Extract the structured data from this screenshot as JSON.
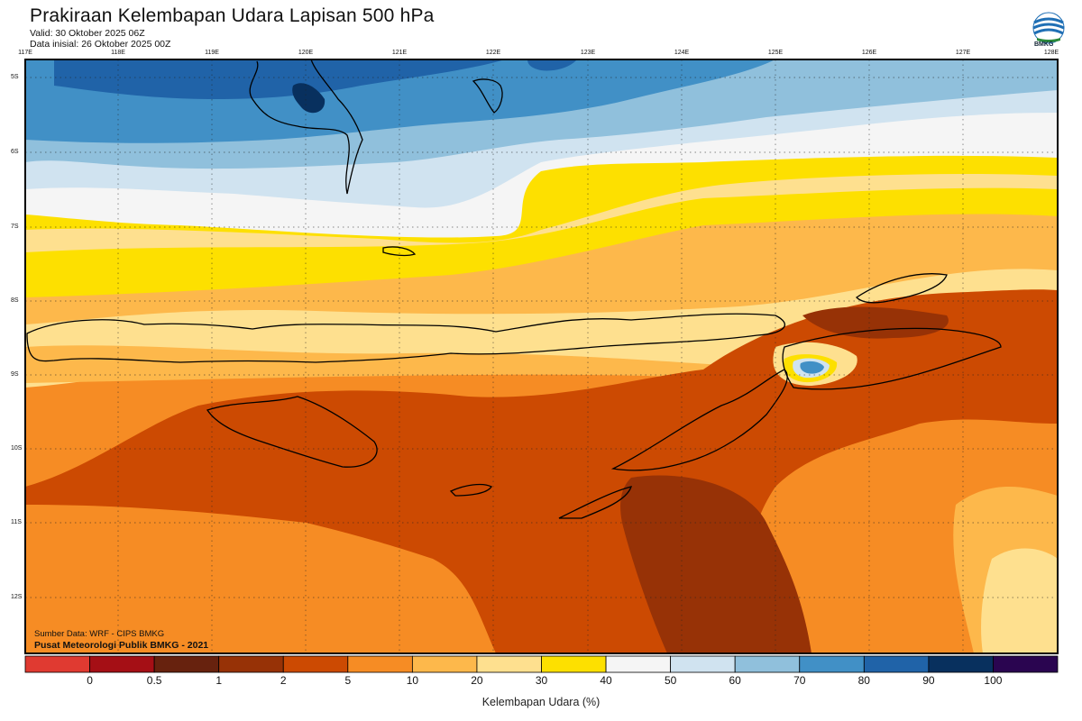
{
  "header": {
    "title": "Prakiraan Kelembapan Udara Lapisan 500 hPa",
    "valid": "Valid: 30 Oktober 2025 06Z",
    "initial": "Data inisial: 26 Oktober 2025 00Z",
    "logo_text": "BMKG"
  },
  "axes": {
    "longitudes": [
      "117E",
      "118E",
      "119E",
      "120E",
      "121E",
      "122E",
      "123E",
      "124E",
      "125E",
      "126E",
      "127E",
      "128E"
    ],
    "latitudes": [
      "5S",
      "6S",
      "7S",
      "8S",
      "9S",
      "10S",
      "11S",
      "12S"
    ]
  },
  "credits": {
    "source": "Sumber Data: WRF - CIPS BMKG",
    "org": "Pusat Meteorologi Publik BMKG - 2021"
  },
  "colorbar": {
    "title": "Kelembapan Udara (%)",
    "ticks": [
      "0",
      "0.5",
      "1",
      "2",
      "5",
      "10",
      "20",
      "30",
      "40",
      "50",
      "60",
      "70",
      "80",
      "90",
      "100"
    ],
    "colors": [
      "#e03a31",
      "#a50f15",
      "#67220e",
      "#973206",
      "#cc4a02",
      "#f68c24",
      "#fdb84b",
      "#fee08f",
      "#fde000",
      "#f5f5f5",
      "#d0e3f0",
      "#90c0dc",
      "#4190c6",
      "#2063a8",
      "#08305e",
      "#2a0550"
    ]
  },
  "legend_colors": {
    "level_5": "#cc4a02",
    "level_10": "#f68c24",
    "level_20": "#fdb84b",
    "level_30": "#fee08f",
    "level_40": "#fde000",
    "level_50": "#f5f5f5",
    "level_60": "#d0e3f0",
    "level_70": "#90c0dc",
    "level_80": "#4190c6",
    "level_90": "#2063a8",
    "level_100": "#08305e",
    "level_2": "#973206"
  }
}
